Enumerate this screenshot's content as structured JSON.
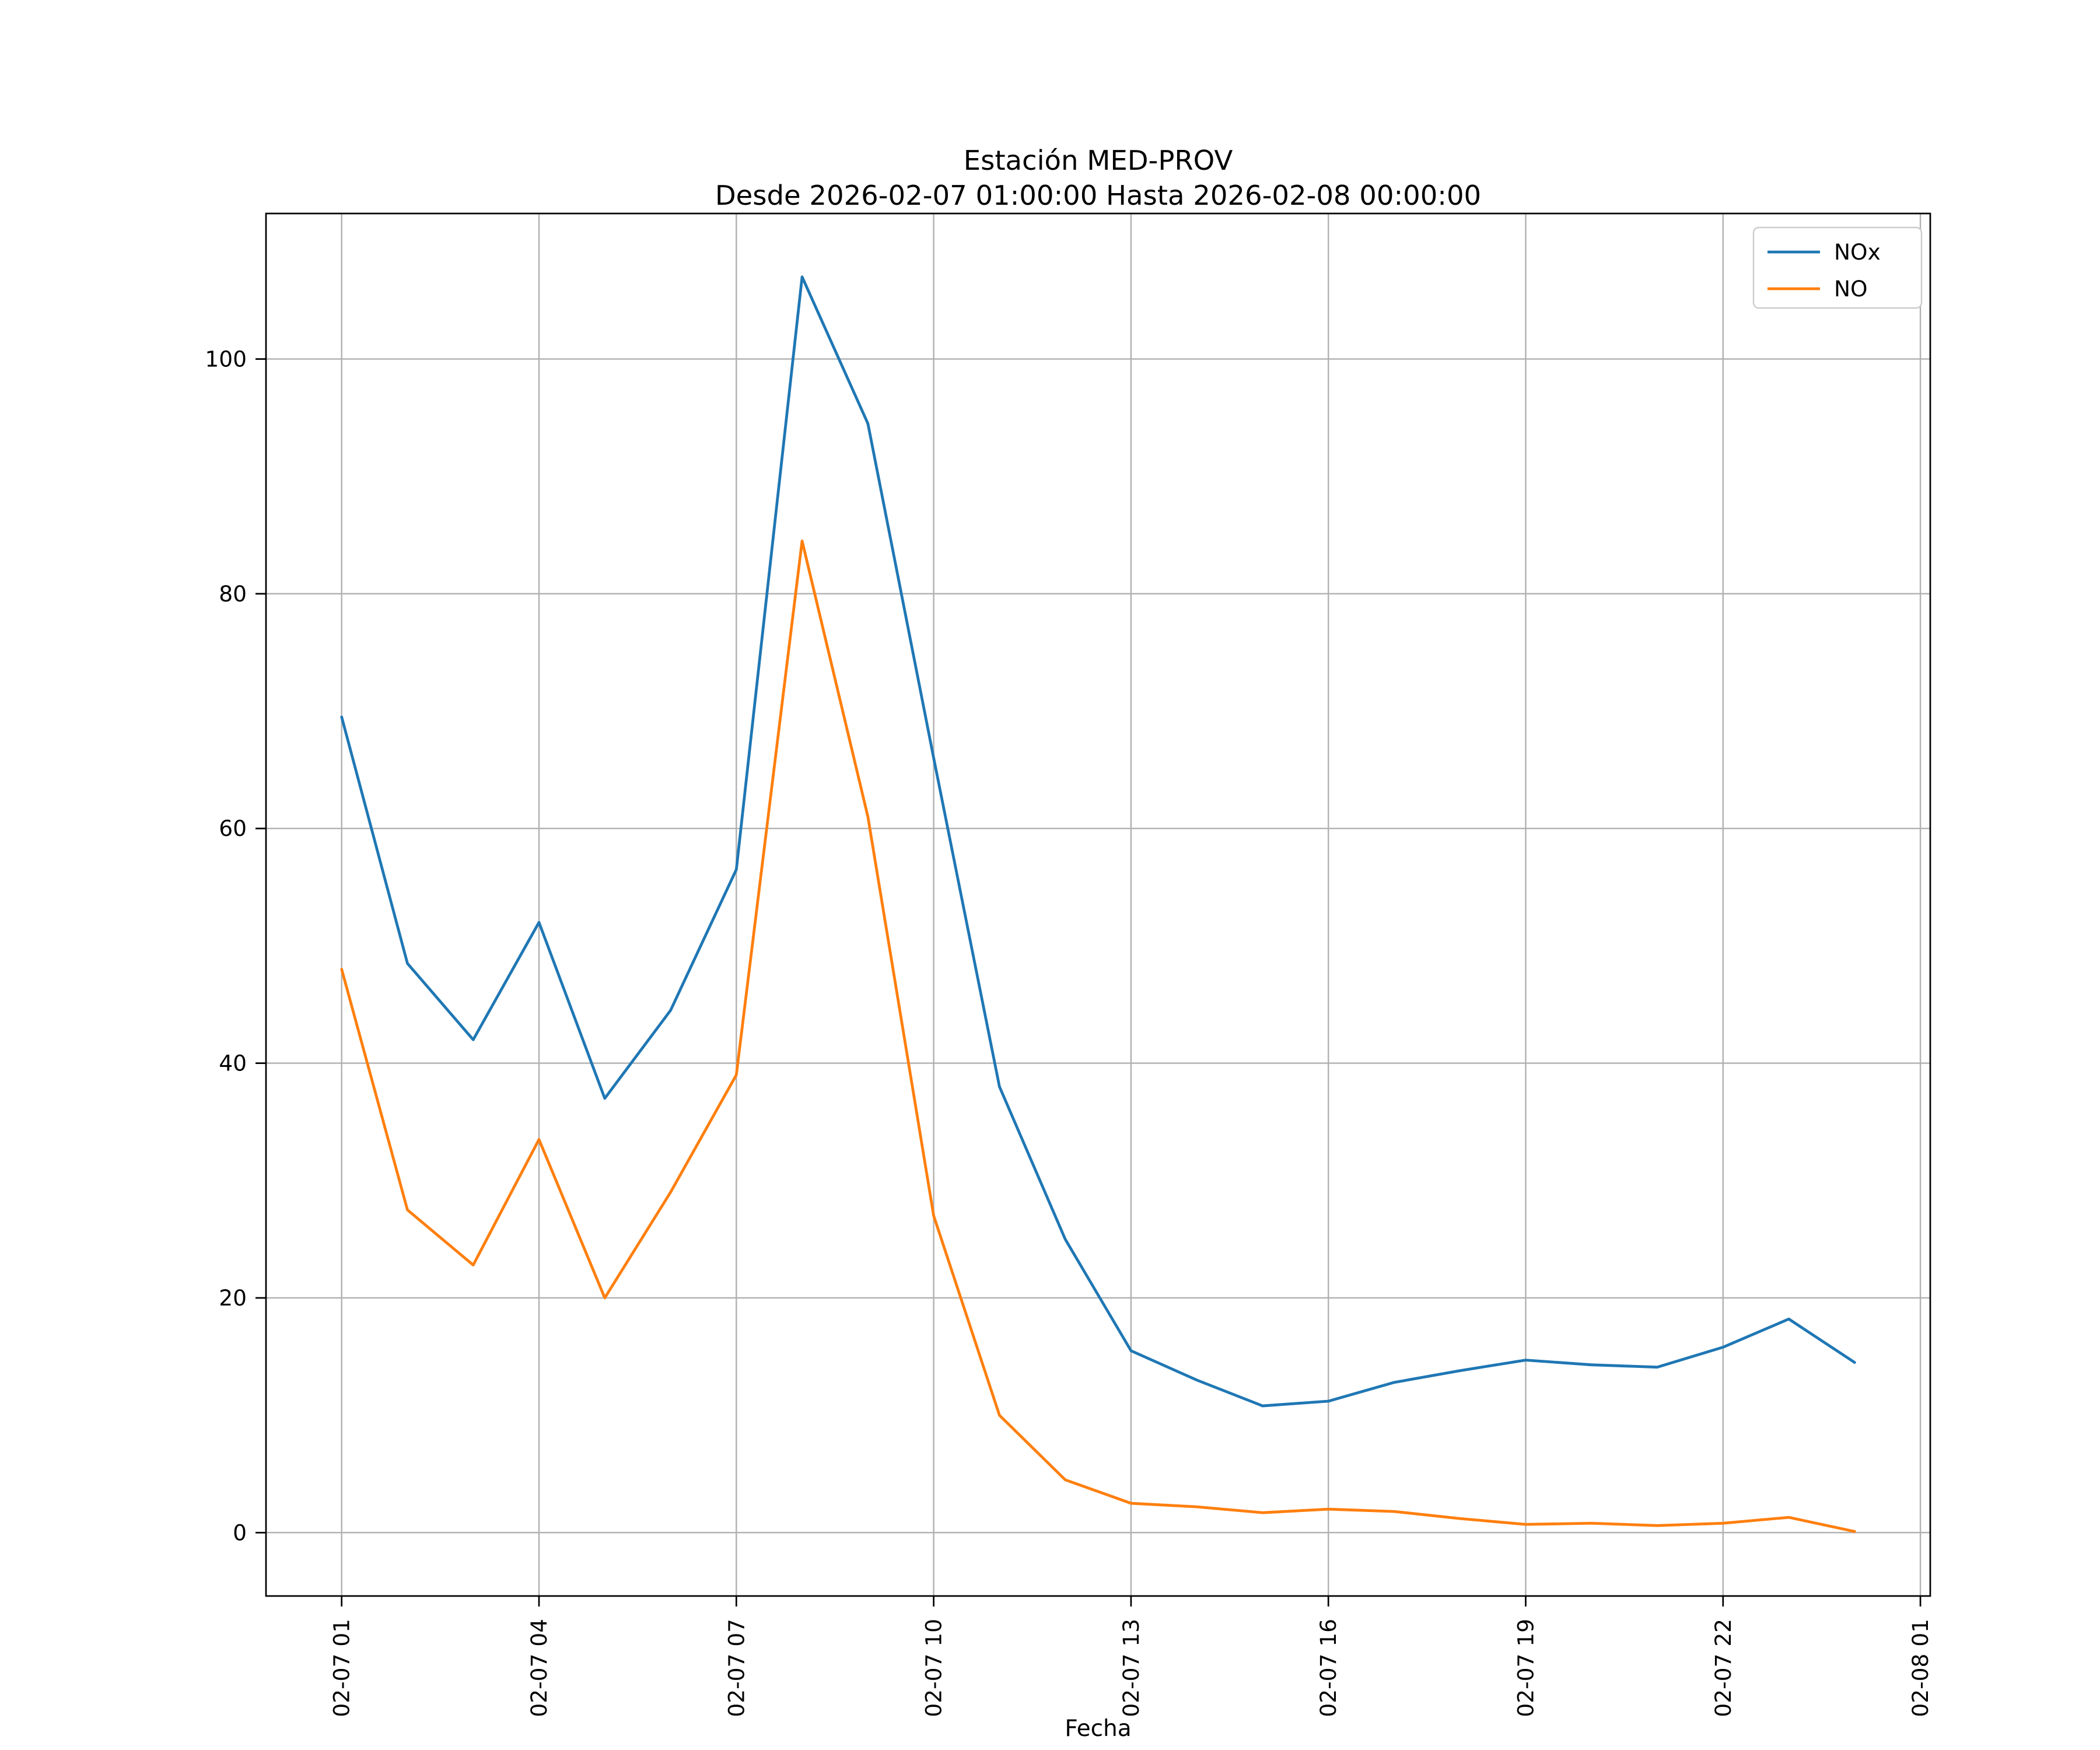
{
  "chart_data": {
    "type": "line",
    "title": "Estación MED-PROV",
    "subtitle": "Desde 2026-02-07 01:00:00 Hasta 2026-02-08 00:00:00",
    "xlabel": "Fecha",
    "ylabel": "",
    "grid": true,
    "legend_position": "upper-right",
    "xlim": [
      -0.15,
      25.15
    ],
    "ylim": [
      -5.4,
      112.4
    ],
    "y_ticks": [
      0,
      20,
      40,
      60,
      80,
      100
    ],
    "x_tick_hours": [
      1,
      4,
      7,
      10,
      13,
      16,
      19,
      22,
      25
    ],
    "x_tick_labels": [
      "02-07 01",
      "02-07 04",
      "02-07 07",
      "02-07 10",
      "02-07 13",
      "02-07 16",
      "02-07 19",
      "02-07 22",
      "02-08 01"
    ],
    "x_hours": [
      1,
      2,
      3,
      4,
      5,
      6,
      7,
      8,
      9,
      10,
      11,
      12,
      13,
      14,
      15,
      16,
      17,
      18,
      19,
      20,
      21,
      22,
      23,
      24
    ],
    "series": [
      {
        "name": "NOx",
        "color": "#1f77b4",
        "values": [
          69.5,
          48.5,
          42.0,
          52.0,
          37.0,
          44.5,
          56.5,
          107.0,
          94.5,
          66.0,
          38.0,
          25.0,
          15.5,
          13.0,
          10.8,
          11.2,
          12.8,
          13.8,
          14.7,
          14.3,
          14.1,
          15.8,
          18.2,
          14.5
        ]
      },
      {
        "name": "NO",
        "color": "#ff7f0e",
        "values": [
          48.0,
          27.5,
          22.8,
          33.5,
          20.0,
          29.0,
          39.0,
          84.5,
          61.0,
          27.0,
          10.0,
          4.5,
          2.5,
          2.2,
          1.7,
          2.0,
          1.8,
          1.2,
          0.7,
          0.8,
          0.6,
          0.8,
          1.3,
          0.1
        ]
      }
    ],
    "grid_color": "#b0b0b0"
  }
}
